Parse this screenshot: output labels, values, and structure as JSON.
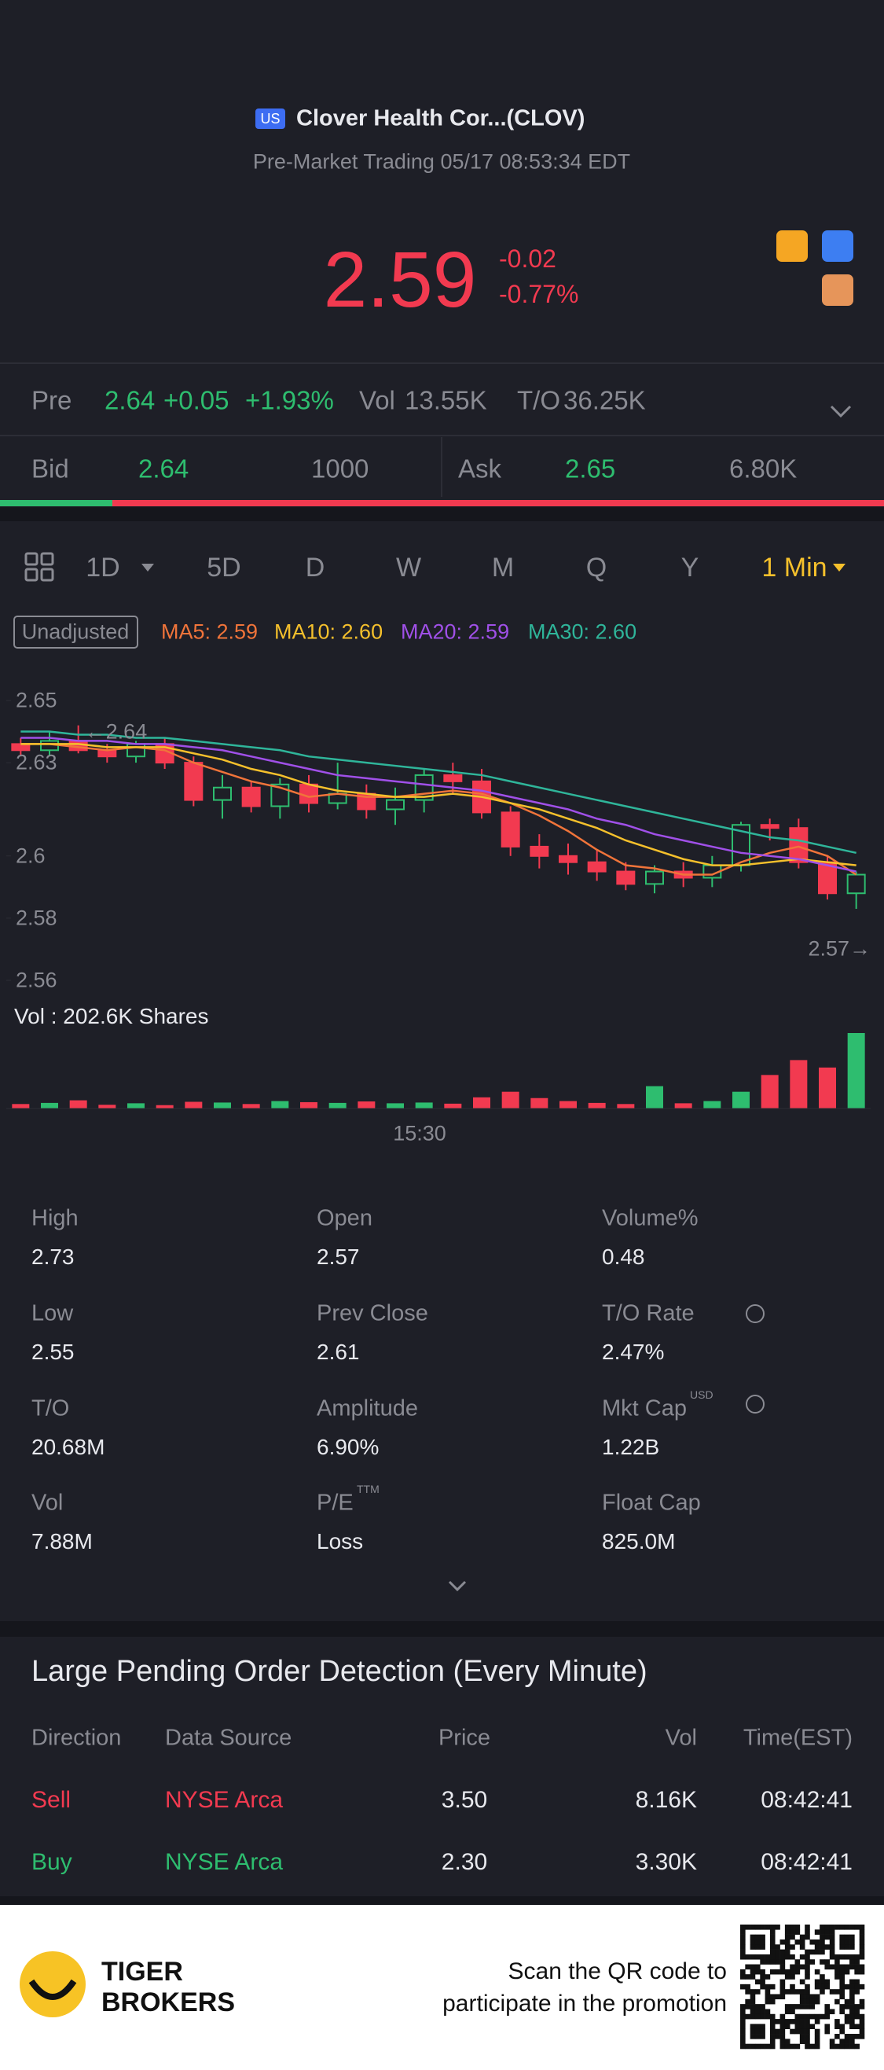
{
  "header": {
    "badge": "US",
    "name": "Clover Health Cor...(CLOV)",
    "status": "Pre-Market Trading 05/17 08:53:34 EDT"
  },
  "quote": {
    "price": "2.59",
    "change": "-0.02",
    "change_pct": "-0.77%"
  },
  "pre": {
    "label": "Pre",
    "price": "2.64",
    "change": "+0.05",
    "change_pct": "+1.93%",
    "vol_label": "Vol",
    "vol": "13.55K",
    "to_label": "T/O",
    "to": "36.25K"
  },
  "bidask": {
    "bid_label": "Bid",
    "bid": "2.64",
    "bid_size": "1000",
    "ask_label": "Ask",
    "ask": "2.65",
    "ask_size": "6.80K"
  },
  "periods": [
    "1D",
    "5D",
    "D",
    "W",
    "M",
    "Q",
    "Y",
    "1 Min"
  ],
  "chart": {
    "type": "candlestick",
    "adjust_label": "Unadjusted",
    "ylim": [
      2.56,
      2.65
    ],
    "yticks": [
      2.65,
      2.63,
      2.6,
      2.58,
      2.56
    ],
    "grid": false,
    "up_color": "#2ebd6f",
    "down_color": "#f23a50",
    "high_note": "←2.64",
    "low_note": "2.57→",
    "x_label": "15:30",
    "volume_label": "Vol  : 202.6K Shares",
    "open": [
      2.636,
      2.634,
      2.637,
      2.634,
      2.632,
      2.636,
      2.63,
      2.618,
      2.622,
      2.616,
      2.623,
      2.617,
      2.62,
      2.615,
      2.618,
      2.626,
      2.624,
      2.614,
      2.603,
      2.6,
      2.598,
      2.595,
      2.591,
      2.595,
      2.593,
      2.597,
      2.61,
      2.609,
      2.598,
      2.588
    ],
    "high": [
      2.638,
      2.64,
      2.642,
      2.636,
      2.637,
      2.638,
      2.632,
      2.626,
      2.624,
      2.625,
      2.626,
      2.63,
      2.623,
      2.622,
      2.628,
      2.63,
      2.628,
      2.616,
      2.607,
      2.604,
      2.602,
      2.598,
      2.597,
      2.598,
      2.6,
      2.611,
      2.612,
      2.612,
      2.6,
      2.595
    ],
    "low": [
      2.632,
      2.632,
      2.633,
      2.63,
      2.63,
      2.628,
      2.616,
      2.612,
      2.614,
      2.612,
      2.614,
      2.615,
      2.612,
      2.61,
      2.614,
      2.62,
      2.612,
      2.6,
      2.596,
      2.594,
      2.592,
      2.589,
      2.588,
      2.59,
      2.59,
      2.595,
      2.605,
      2.596,
      2.586,
      2.583
    ],
    "close": [
      2.634,
      2.637,
      2.634,
      2.632,
      2.636,
      2.63,
      2.618,
      2.622,
      2.616,
      2.623,
      2.617,
      2.62,
      2.615,
      2.618,
      2.626,
      2.624,
      2.614,
      2.603,
      2.6,
      2.598,
      2.595,
      2.591,
      2.595,
      2.593,
      2.597,
      2.61,
      2.609,
      2.598,
      2.588,
      2.594
    ],
    "volume": [
      12000,
      15000,
      22000,
      10000,
      14000,
      9000,
      18000,
      16000,
      12000,
      20000,
      17000,
      15000,
      19000,
      14000,
      16000,
      13000,
      30000,
      45000,
      28000,
      20000,
      15000,
      12000,
      60000,
      14000,
      20000,
      45000,
      90000,
      130000,
      110000,
      202600
    ],
    "series": [
      {
        "name": "MA5: 2.59",
        "color": "#f0743a",
        "values": [
          2.636,
          2.636,
          2.635,
          2.634,
          2.635,
          2.634,
          2.63,
          2.627,
          2.624,
          2.622,
          2.619,
          2.62,
          2.619,
          2.619,
          2.62,
          2.621,
          2.62,
          2.617,
          2.613,
          2.608,
          2.602,
          2.597,
          2.596,
          2.594,
          2.594,
          2.598,
          2.601,
          2.603,
          2.6,
          2.594
        ]
      },
      {
        "name": "MA10: 2.60",
        "color": "#f5c02c",
        "values": [
          2.636,
          2.636,
          2.636,
          2.635,
          2.635,
          2.635,
          2.633,
          2.631,
          2.628,
          2.626,
          2.623,
          2.621,
          2.62,
          2.619,
          2.619,
          2.62,
          2.619,
          2.617,
          2.615,
          2.612,
          2.609,
          2.605,
          2.602,
          2.599,
          2.597,
          2.597,
          2.598,
          2.599,
          2.598,
          2.597
        ]
      },
      {
        "name": "MA20: 2.59",
        "color": "#a050e8",
        "values": [
          2.638,
          2.638,
          2.637,
          2.637,
          2.636,
          2.636,
          2.635,
          2.634,
          2.632,
          2.63,
          2.628,
          2.626,
          2.625,
          2.624,
          2.623,
          2.622,
          2.621,
          2.619,
          2.617,
          2.615,
          2.612,
          2.61,
          2.607,
          2.605,
          2.603,
          2.601,
          2.6,
          2.599,
          2.597,
          2.595
        ]
      },
      {
        "name": "MA30: 2.60",
        "color": "#2fb59a",
        "values": [
          2.64,
          2.64,
          2.639,
          2.639,
          2.638,
          2.638,
          2.637,
          2.636,
          2.635,
          2.634,
          2.632,
          2.631,
          2.63,
          2.629,
          2.628,
          2.627,
          2.626,
          2.624,
          2.622,
          2.62,
          2.618,
          2.616,
          2.614,
          2.612,
          2.61,
          2.608,
          2.606,
          2.605,
          2.603,
          2.601
        ]
      }
    ]
  },
  "stats": [
    {
      "label": "High",
      "value": "2.73"
    },
    {
      "label": "Open",
      "value": "2.57"
    },
    {
      "label": "Volume%",
      "value": "0.48"
    },
    {
      "label": "Low",
      "value": "2.55"
    },
    {
      "label": "Prev Close",
      "value": "2.61"
    },
    {
      "label": "T/O Rate",
      "value": "2.47%",
      "info": true
    },
    {
      "label": "T/O",
      "value": "20.68M"
    },
    {
      "label": "Amplitude",
      "value": "6.90%"
    },
    {
      "label": "Mkt Cap",
      "value": "1.22B",
      "sup": "USD",
      "info": true
    },
    {
      "label": "Vol",
      "value": "7.88M"
    },
    {
      "label": "P/E",
      "value": "Loss",
      "sup": "TTM"
    },
    {
      "label": "Float Cap",
      "value": "825.0M"
    }
  ],
  "pending": {
    "title": "Large Pending Order Detection (Every Minute)",
    "columns": [
      "Direction",
      "Data Source",
      "Price",
      "Vol",
      "Time(EST)"
    ],
    "rows": [
      [
        "Sell",
        "NYSE Arca",
        "3.50",
        "8.16K",
        "08:42:41"
      ],
      [
        "Buy",
        "NYSE Arca",
        "2.30",
        "3.30K",
        "08:42:41"
      ]
    ],
    "row_colors": [
      "#f23a50",
      "#2ebd6f"
    ]
  },
  "footer": {
    "brand_top": "TIGER",
    "brand_bottom": "BROKERS",
    "promo_line1": "Scan the QR code to",
    "promo_line2": "participate in the promotion"
  }
}
